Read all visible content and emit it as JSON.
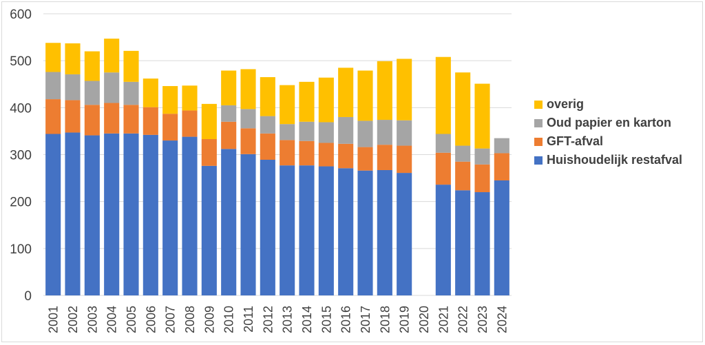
{
  "chart_data": {
    "type": "bar",
    "stacked": true,
    "title": "",
    "xlabel": "",
    "ylabel": "",
    "ylim": [
      0,
      600
    ],
    "yticks": [
      0,
      100,
      200,
      300,
      400,
      500,
      600
    ],
    "grid": true,
    "legend_position": "right",
    "categories": [
      "2001",
      "2002",
      "2003",
      "2004",
      "2005",
      "2006",
      "2007",
      "2008",
      "2009",
      "2010",
      "2011",
      "2012",
      "2013",
      "2014",
      "2015",
      "2016",
      "2017",
      "2018",
      "2019",
      "2020",
      "2021",
      "2022",
      "2023",
      "2024"
    ],
    "series": [
      {
        "name": "Huishoudelijk restafval",
        "color": "#4472C4",
        "values": [
          344,
          347,
          341,
          345,
          345,
          342,
          330,
          338,
          276,
          312,
          301,
          289,
          277,
          277,
          275,
          271,
          266,
          267,
          261,
          null,
          236,
          224,
          220,
          245
        ]
      },
      {
        "name": "GFT-afval",
        "color": "#ED7D31",
        "values": [
          74,
          69,
          65,
          65,
          61,
          59,
          57,
          56,
          57,
          58,
          55,
          56,
          54,
          52,
          50,
          52,
          50,
          54,
          58,
          null,
          68,
          61,
          59,
          58
        ]
      },
      {
        "name": "Oud papier en karton",
        "color": "#A5A5A5",
        "values": [
          58,
          55,
          51,
          65,
          49,
          0,
          0,
          0,
          0,
          35,
          41,
          37,
          34,
          41,
          44,
          57,
          56,
          53,
          54,
          null,
          40,
          34,
          34,
          32
        ]
      },
      {
        "name": "overig",
        "color": "#FFC000",
        "values": [
          62,
          66,
          63,
          72,
          66,
          61,
          59,
          53,
          75,
          74,
          85,
          83,
          83,
          85,
          95,
          105,
          107,
          125,
          131,
          null,
          164,
          156,
          138,
          0
        ]
      }
    ],
    "legend_order": [
      "overig",
      "Oud papier en karton",
      "GFT-afval",
      "Huishoudelijk restafval"
    ]
  },
  "legend": [
    {
      "label": "overig",
      "color": "#FFC000"
    },
    {
      "label": "Oud papier en karton",
      "color": "#A5A5A5"
    },
    {
      "label": "GFT-afval",
      "color": "#ED7D31"
    },
    {
      "label": "Huishoudelijk restafval",
      "color": "#4472C4"
    }
  ]
}
